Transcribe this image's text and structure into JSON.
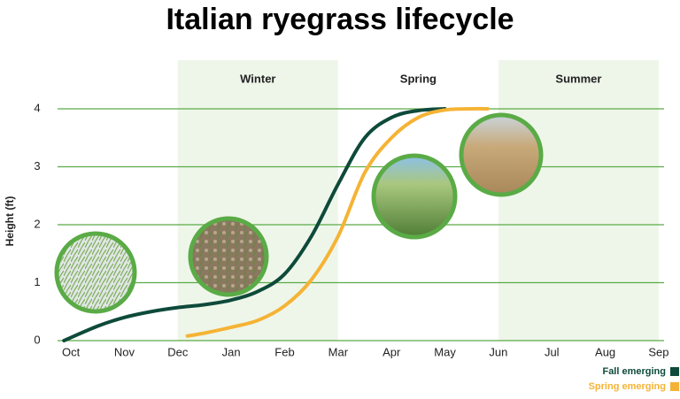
{
  "chart_data": {
    "type": "line",
    "title": "Italian ryegrass lifecycle",
    "y_label": "Height (ft)",
    "xlim": [
      -0.25,
      11.1
    ],
    "xticks": [
      {
        "value": 0,
        "label": "Oct"
      },
      {
        "value": 1,
        "label": "Nov"
      },
      {
        "value": 2,
        "label": "Dec"
      },
      {
        "value": 3,
        "label": "Jan"
      },
      {
        "value": 4,
        "label": "Feb"
      },
      {
        "value": 5,
        "label": "Mar"
      },
      {
        "value": 6,
        "label": "Apr"
      },
      {
        "value": 7,
        "label": "May"
      },
      {
        "value": 8,
        "label": "Jun"
      },
      {
        "value": 9,
        "label": "Jul"
      },
      {
        "value": 10,
        "label": "Aug"
      },
      {
        "value": 11,
        "label": "Sep"
      }
    ],
    "ylim": [
      0,
      4
    ],
    "yticks": [
      0,
      1,
      2,
      3,
      4
    ],
    "grid": true,
    "seasons": [
      {
        "name": "Winter",
        "from": 2,
        "to": 5,
        "shaded": true
      },
      {
        "name": "Spring",
        "from": 5,
        "to": 8,
        "shaded": false
      },
      {
        "name": "Summer",
        "from": 8,
        "to": 11,
        "shaded": true
      }
    ],
    "series": [
      {
        "name": "Fall emerging",
        "color": "#0e4a3a",
        "x": [
          -0.13,
          0.5,
          1,
          1.5,
          2,
          2.5,
          3,
          3.5,
          4,
          4.5,
          5,
          5.5,
          6,
          6.5,
          7
        ],
        "values": [
          0,
          0.25,
          0.4,
          0.5,
          0.57,
          0.62,
          0.7,
          0.85,
          1.15,
          1.8,
          2.7,
          3.5,
          3.85,
          3.97,
          4
        ]
      },
      {
        "name": "Spring emerging",
        "color": "#f5b335",
        "x": [
          2.18,
          2.5,
          3,
          3.5,
          4,
          4.5,
          5,
          5.5,
          6,
          6.5,
          7,
          7.5,
          7.8
        ],
        "values": [
          0.08,
          0.13,
          0.23,
          0.35,
          0.6,
          1.05,
          1.8,
          2.9,
          3.5,
          3.85,
          3.98,
          4,
          4
        ]
      }
    ]
  }
}
